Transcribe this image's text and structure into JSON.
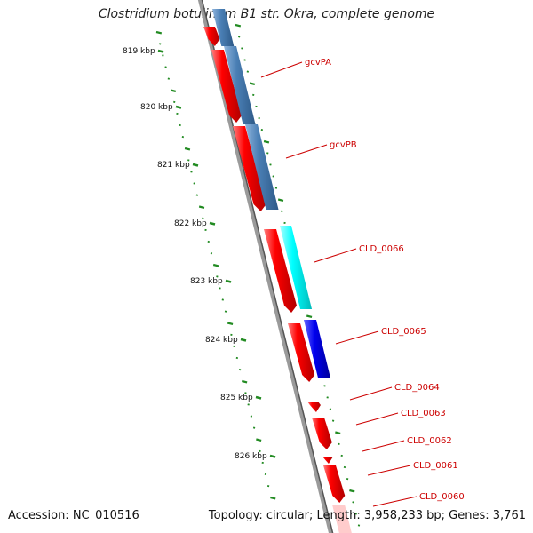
{
  "title": "Clostridium botulinum B1 str. Okra, complete genome",
  "footer": {
    "accession": "Accession: NC_010516",
    "topology": "Topology: circular; Length: 3,958,233 bp; Genes: 3,761"
  },
  "ticks": [
    "819 kbp",
    "820 kbp",
    "821 kbp",
    "822 kbp",
    "823 kbp",
    "824 kbp",
    "825 kbp",
    "826 kbp"
  ],
  "genes": [
    "gcvPA",
    "gcvPB",
    "CLD_0066",
    "CLD_0065",
    "CLD_0064",
    "CLD_0063",
    "CLD_0062",
    "CLD_0061",
    "CLD_0060"
  ],
  "colors": {
    "cds": "#ff0000",
    "blue_steel": "#4a7fb5",
    "cyan": "#00ffff",
    "blue": "#0000ee",
    "tick": "#228b22",
    "backbone": "#808080",
    "label": "#cc0000"
  }
}
